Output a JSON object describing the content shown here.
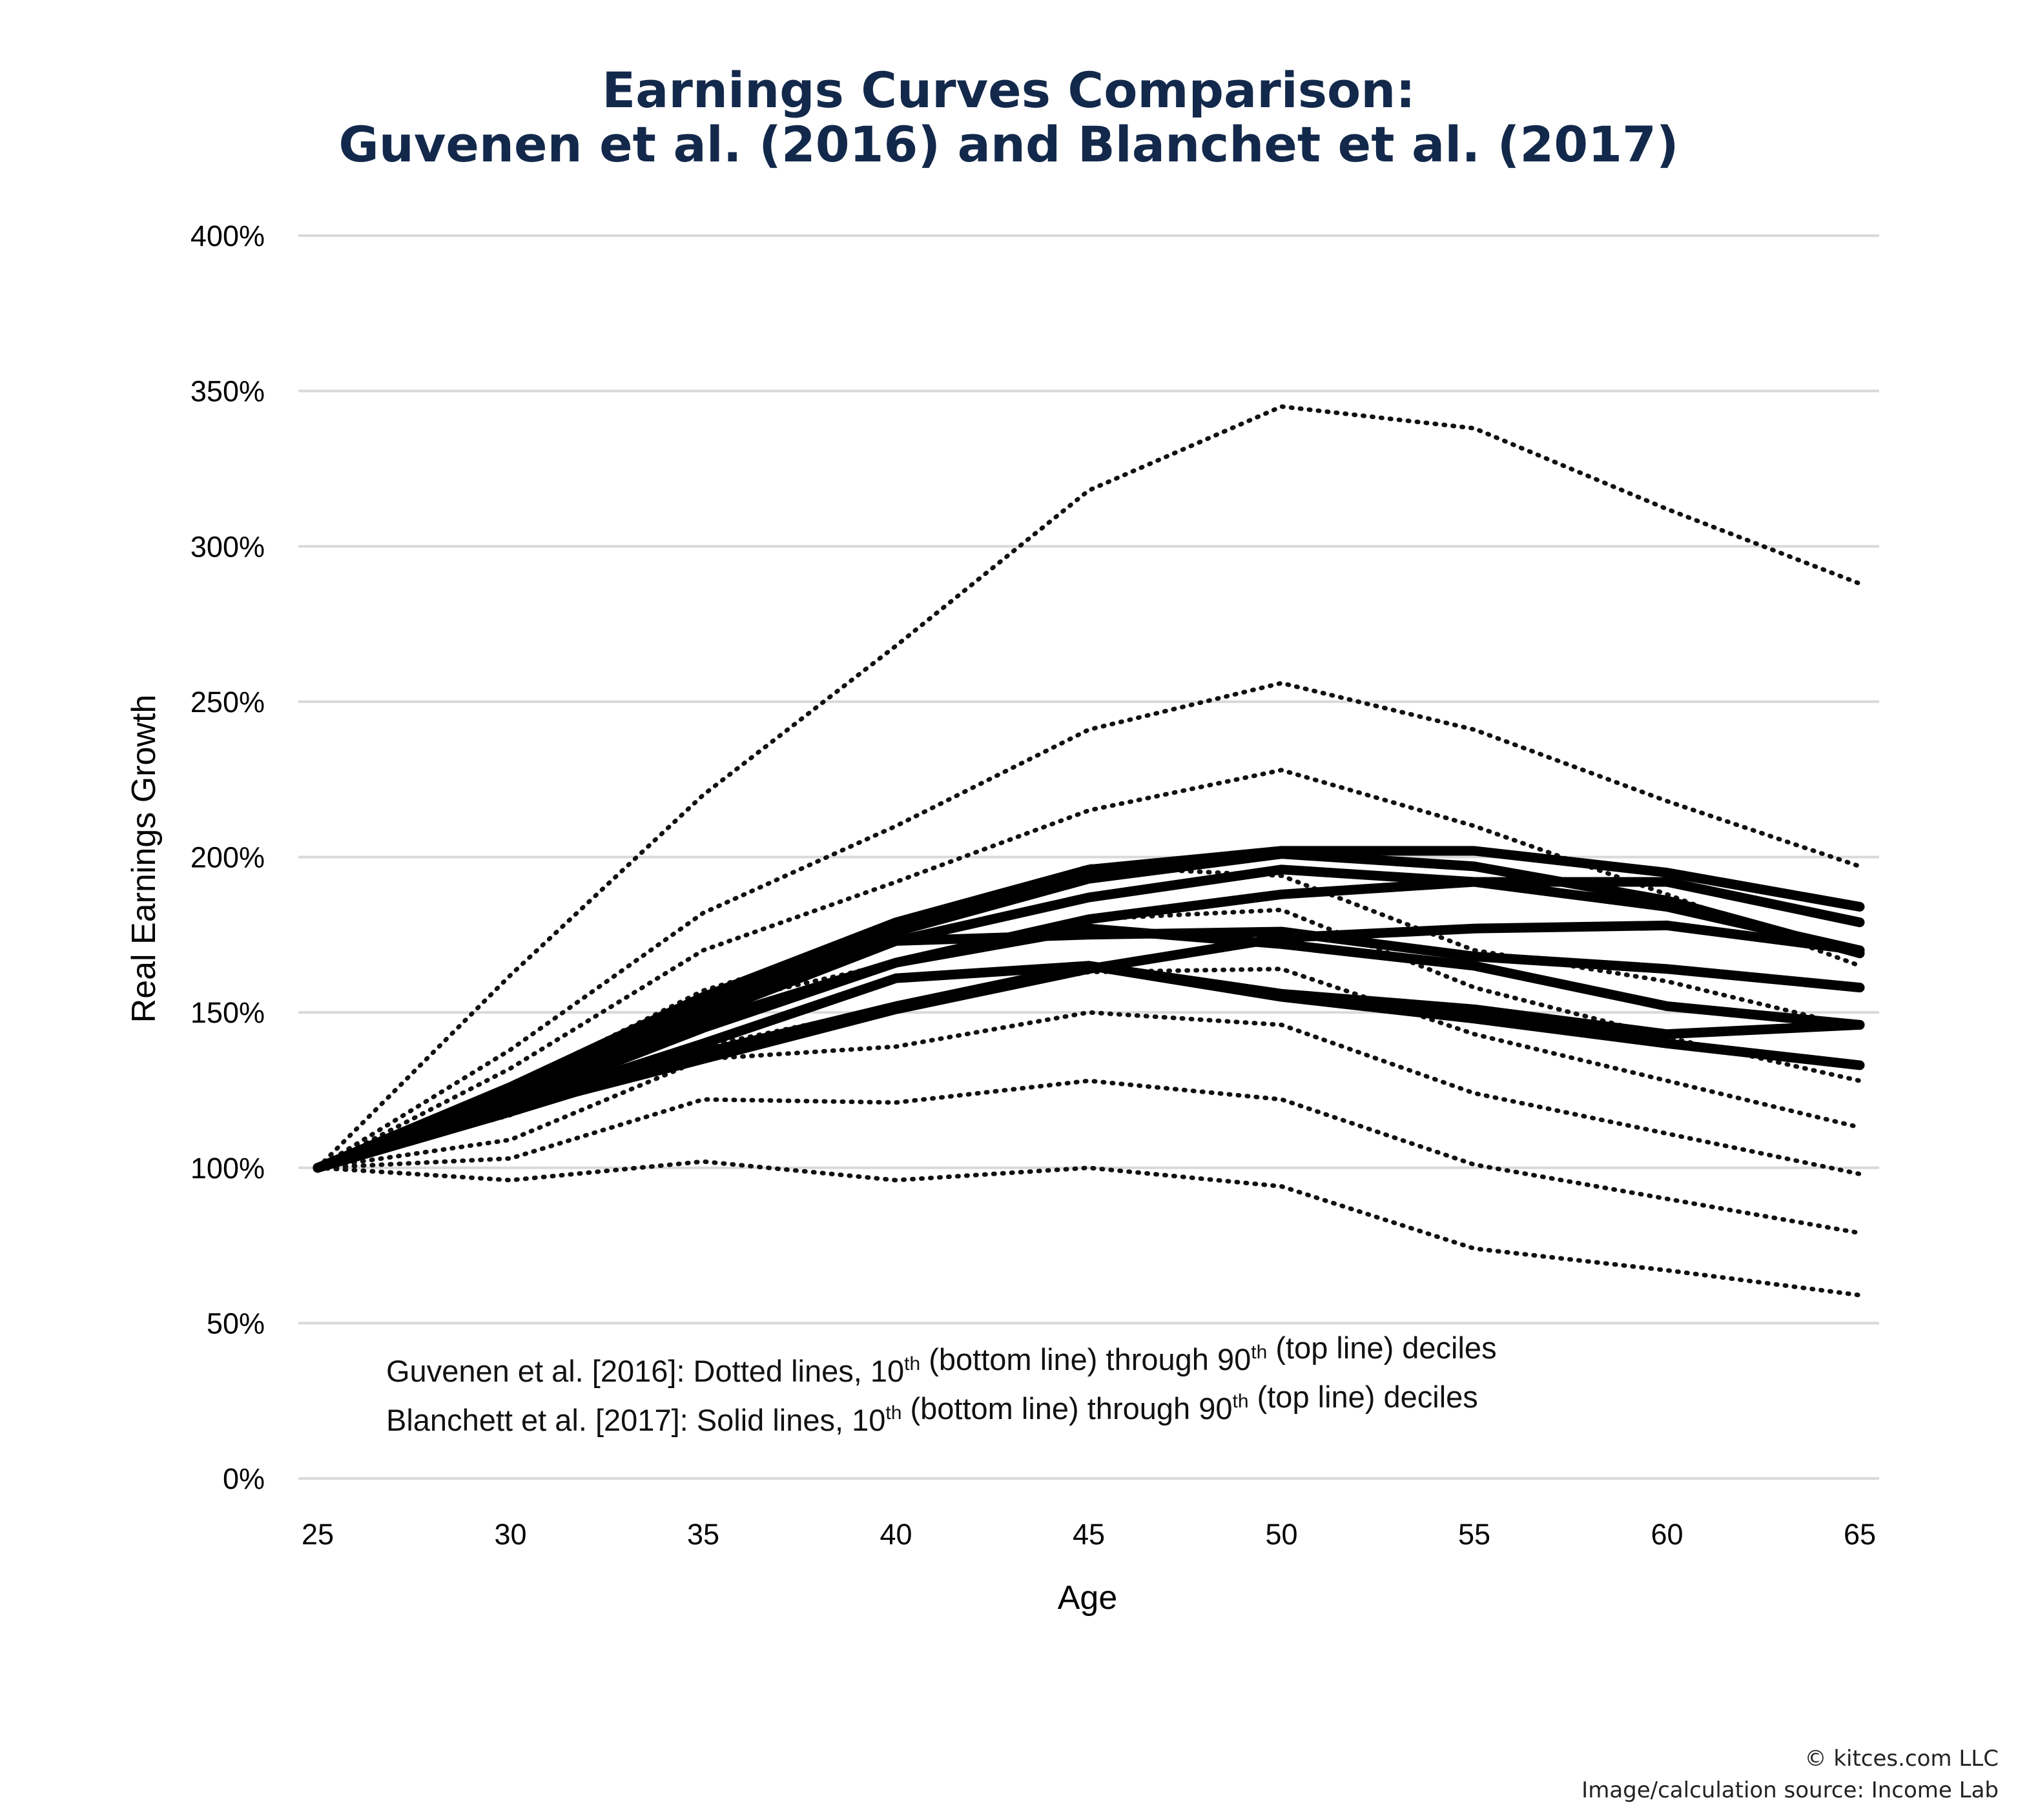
{
  "chart_data": {
    "type": "line",
    "title_lines": [
      "Earnings Curves Comparison:",
      "Guvenen et al. (2016) and Blanchet et al. (2017)"
    ],
    "xlabel": "Age",
    "ylabel": "Real Earnings Growth",
    "x": [
      25,
      30,
      35,
      40,
      45,
      50,
      55,
      60,
      65
    ],
    "xlim": [
      25,
      65
    ],
    "ylim": [
      0,
      400
    ],
    "yticks": [
      0,
      50,
      100,
      150,
      200,
      250,
      300,
      350,
      400
    ],
    "ytick_labels": [
      "0%",
      "50%",
      "100%",
      "150%",
      "200%",
      "250%",
      "300%",
      "350%",
      "400%"
    ],
    "xtick_labels": [
      "25",
      "30",
      "35",
      "40",
      "45",
      "50",
      "55",
      "60",
      "65"
    ],
    "grid": true,
    "dotted_series": [
      {
        "values": [
          100,
          96,
          102,
          96,
          100,
          94,
          74,
          67,
          59
        ]
      },
      {
        "values": [
          100,
          103,
          122,
          121,
          128,
          122,
          101,
          90,
          79
        ]
      },
      {
        "values": [
          100,
          109,
          135,
          139,
          150,
          146,
          124,
          111,
          98
        ]
      },
      {
        "values": [
          100,
          117,
          139,
          152,
          163,
          164,
          143,
          128,
          113
        ]
      },
      {
        "values": [
          100,
          121,
          152,
          166,
          180,
          183,
          158,
          142,
          128
        ]
      },
      {
        "values": [
          100,
          126,
          157,
          176,
          197,
          194,
          170,
          160,
          145
        ]
      },
      {
        "values": [
          100,
          132,
          170,
          192,
          215,
          228,
          210,
          188,
          165
        ]
      },
      {
        "values": [
          100,
          138,
          182,
          210,
          241,
          256,
          241,
          218,
          197
        ]
      },
      {
        "values": [
          100,
          162,
          220,
          268,
          318,
          345,
          338,
          312,
          288
        ]
      }
    ],
    "solid_series": [
      {
        "values": [
          100,
          118,
          137,
          152,
          165,
          155,
          148,
          140,
          133
        ]
      },
      {
        "values": [
          100,
          119,
          135,
          151,
          164,
          174,
          177,
          178,
          170
        ]
      },
      {
        "values": [
          100,
          120,
          140,
          161,
          165,
          156,
          151,
          143,
          146
        ]
      },
      {
        "values": [
          100,
          121,
          145,
          166,
          177,
          172,
          165,
          152,
          146
        ]
      },
      {
        "values": [
          100,
          122,
          149,
          173,
          175,
          176,
          168,
          164,
          158
        ]
      },
      {
        "values": [
          100,
          123,
          147,
          166,
          180,
          188,
          192,
          192,
          179
        ]
      },
      {
        "values": [
          100,
          124,
          150,
          173,
          187,
          196,
          192,
          184,
          170
        ]
      },
      {
        "values": [
          100,
          125,
          152,
          176,
          193,
          201,
          197,
          186,
          169
        ]
      },
      {
        "values": [
          100,
          126,
          155,
          179,
          196,
          202,
          202,
          195,
          184
        ]
      }
    ],
    "annotation_lines": [
      {
        "lead": "Guvenen et al. [2016]: Dotted lines, 10",
        "sup1": "th",
        "mid": " (bottom line) through 90",
        "sup2": "th",
        "tail": " (top line) deciles"
      },
      {
        "lead": "Blanchett et al. [2017]: Solid lines, 10",
        "sup1": "th",
        "mid": " (bottom line) through 90",
        "sup2": "th",
        "tail": " (top line) deciles"
      }
    ]
  },
  "credits": {
    "line1": "© kitces.com LLC",
    "line2": "Image/calculation source: Income Lab"
  }
}
